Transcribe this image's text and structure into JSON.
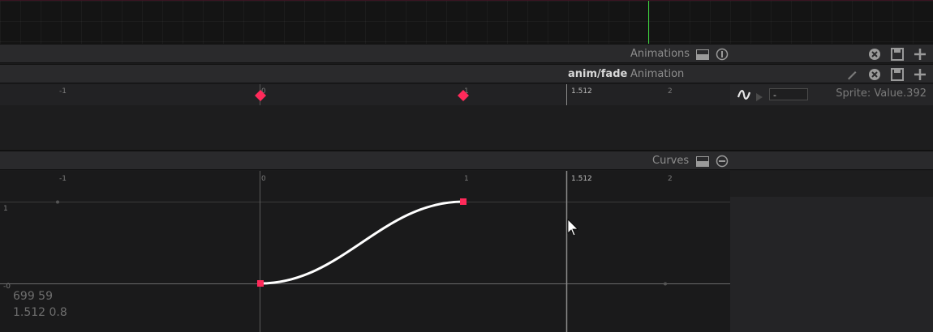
{
  "animations_bar": {
    "title": "Animations"
  },
  "anim_bar": {
    "name": "anim/fade",
    "type": "Animation"
  },
  "timeline": {
    "ticks": [
      "-1",
      "0",
      "1",
      "1.512",
      "2"
    ],
    "playhead": "1.512"
  },
  "track_controls": {
    "field_value": "-",
    "target": "Sprite: Value.392"
  },
  "curves_bar": {
    "title": "Curves"
  },
  "curves": {
    "x_ticks": [
      "-1",
      "0",
      "1",
      "1.512",
      "2"
    ],
    "y_ticks": [
      "1",
      "-0"
    ],
    "mouse_readout": "699 59",
    "value_readout": "1.512 0.8"
  },
  "colors": {
    "keyframe": "#ff2a5a",
    "playhead_top": "#3ed23e",
    "curve": "#ffffff"
  }
}
